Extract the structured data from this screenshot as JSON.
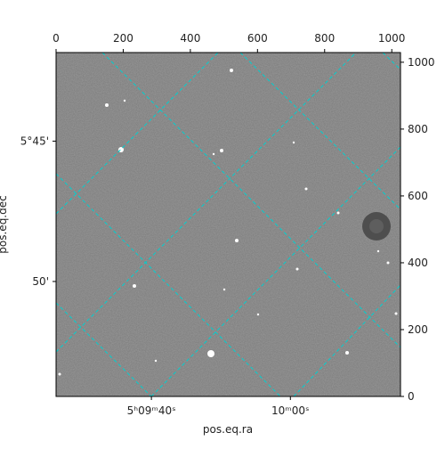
{
  "chart_data": {
    "type": "image",
    "xlabel": "pos.eq.ra",
    "ylabel": "pos.eq.dec",
    "xlim": [
      0,
      1026
    ],
    "ylim": [
      0,
      1029
    ],
    "xticks": [
      0,
      200,
      400,
      600,
      800,
      1000
    ],
    "yticks": [
      0,
      200,
      400,
      600,
      800,
      1000
    ],
    "ra_ticks": [
      {
        "value": 284,
        "label": "5ʰ09ᵐ40ˢ"
      },
      {
        "value": 698,
        "label": "10ᵐ00ˢ"
      }
    ],
    "dec_ticks": [
      {
        "value": 764,
        "label": "5°45'"
      },
      {
        "value": 344,
        "label": "50'"
      }
    ],
    "grid_color": "#00d0d0"
  }
}
